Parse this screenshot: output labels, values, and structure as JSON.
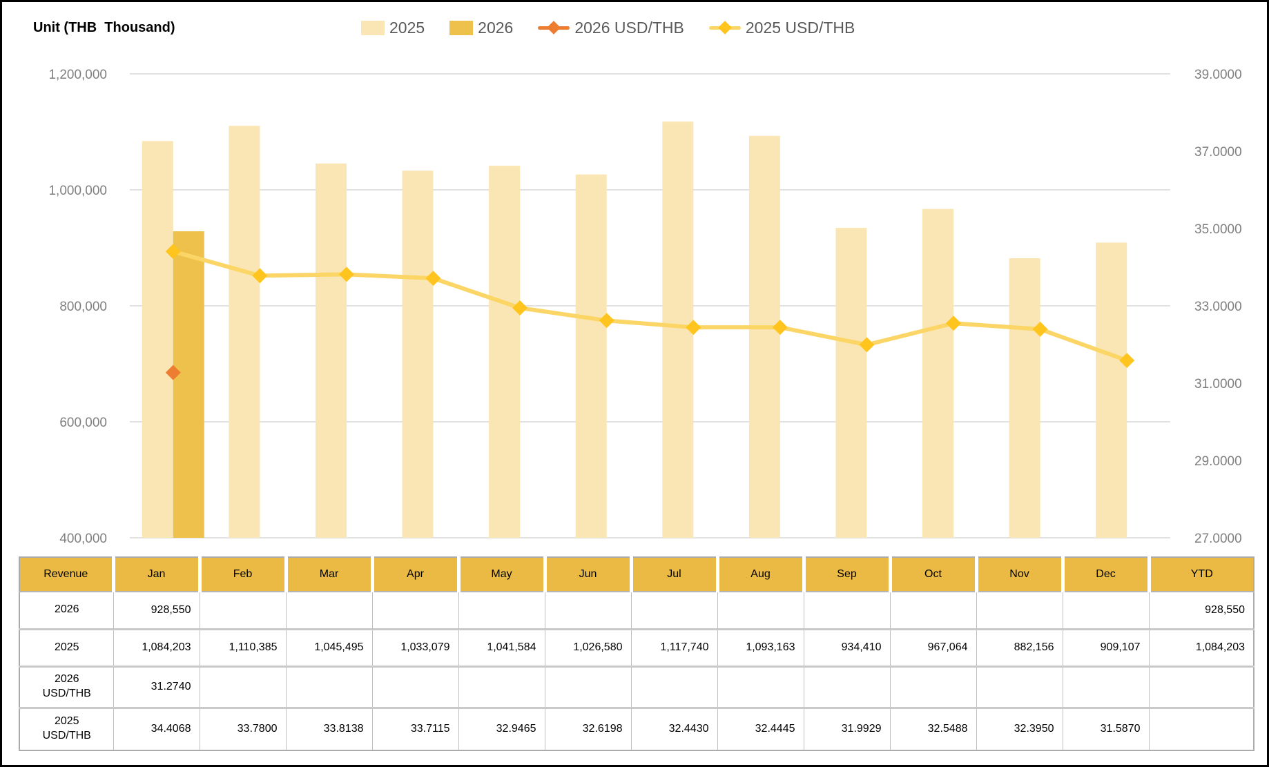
{
  "title": "Unit (THB  Thousand)",
  "legend": [
    {
      "label": "2025",
      "type": "bar",
      "color": "#FAE6B4"
    },
    {
      "label": "2026",
      "type": "bar",
      "color": "#EDC14B"
    },
    {
      "label": "2026 USD/THB",
      "type": "line",
      "color": "#ED7D31",
      "marker_color": "#ED7D31"
    },
    {
      "label": "2025 USD/THB",
      "type": "line",
      "color": "#FBD666",
      "marker_color": "#FFC51E"
    }
  ],
  "chart_data": {
    "type": "bar+line combo",
    "categories": [
      "Jan",
      "Feb",
      "Mar",
      "Apr",
      "May",
      "Jun",
      "Jul",
      "Aug",
      "Sep",
      "Oct",
      "Nov",
      "Dec"
    ],
    "series": [
      {
        "name": "2025",
        "type": "bar",
        "axis": "left",
        "slot": 0,
        "color": "#FAE6B4",
        "values": [
          1084203,
          1110385,
          1045495,
          1033079,
          1041584,
          1026580,
          1117740,
          1093163,
          934410,
          967064,
          882156,
          909107
        ]
      },
      {
        "name": "2026",
        "type": "bar",
        "axis": "left",
        "slot": 1,
        "color": "#EDC14B",
        "values": [
          928550,
          null,
          null,
          null,
          null,
          null,
          null,
          null,
          null,
          null,
          null,
          null
        ]
      },
      {
        "name": "2026 USD/THB",
        "type": "line",
        "axis": "right",
        "color": "#ED7D31",
        "marker_color": "#ED7D31",
        "values": [
          31.274,
          null,
          null,
          null,
          null,
          null,
          null,
          null,
          null,
          null,
          null,
          null
        ]
      },
      {
        "name": "2025 USD/THB",
        "type": "line",
        "axis": "right",
        "color": "#FBD666",
        "marker_color": "#FFC51E",
        "values": [
          34.4068,
          33.78,
          33.8138,
          33.7115,
          32.9465,
          32.6198,
          32.443,
          32.4445,
          31.9929,
          32.5488,
          32.395,
          31.587
        ]
      }
    ],
    "left_axis": {
      "title": "Unit (THB Thousand)",
      "min": 400000,
      "max": 1200000,
      "ticks": [
        "1,200,000",
        "1,000,000",
        "800,000",
        "600,000",
        "400,000"
      ]
    },
    "right_axis": {
      "min": 27.0,
      "max": 39.0,
      "ticks": [
        "39.0000",
        "37.0000",
        "35.0000",
        "33.0000",
        "31.0000",
        "29.0000",
        "27.0000"
      ]
    },
    "grid": true,
    "legend_position": "top"
  },
  "table": {
    "header": [
      "Revenue",
      "Jan",
      "Feb",
      "Mar",
      "Apr",
      "May",
      "Jun",
      "Jul",
      "Aug",
      "Sep",
      "Oct",
      "Nov",
      "Dec",
      "YTD"
    ],
    "rows": [
      {
        "label": "2026",
        "values": [
          "928,550",
          "",
          "",
          "",
          "",
          "",
          "",
          "",
          "",
          "",
          "",
          "",
          "928,550"
        ]
      },
      {
        "label": "2025",
        "values": [
          "1,084,203",
          "1,110,385",
          "1,045,495",
          "1,033,079",
          "1,041,584",
          "1,026,580",
          "1,117,740",
          "1,093,163",
          "934,410",
          "967,064",
          "882,156",
          "909,107",
          "1,084,203"
        ]
      },
      {
        "label": "2026\nUSD/THB",
        "values": [
          "31.2740",
          "",
          "",
          "",
          "",
          "",
          "",
          "",
          "",
          "",
          "",
          "",
          ""
        ]
      },
      {
        "label": "2025\nUSD/THB",
        "values": [
          "34.4068",
          "33.7800",
          "33.8138",
          "33.7115",
          "32.9465",
          "32.6198",
          "32.4430",
          "32.4445",
          "31.9929",
          "32.5488",
          "32.3950",
          "31.5870",
          ""
        ]
      }
    ]
  }
}
